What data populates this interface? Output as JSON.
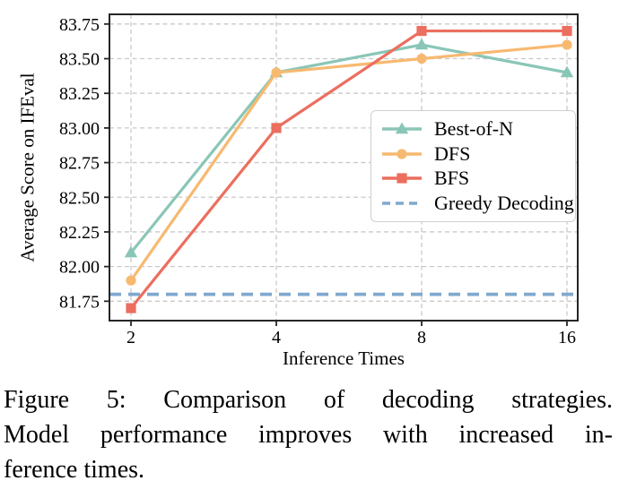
{
  "chart_data": {
    "type": "line",
    "title": "",
    "xlabel": "Inference Times",
    "ylabel": "Average Score on IFEval",
    "categories": [
      "2",
      "4",
      "8",
      "16"
    ],
    "yticks": [
      81.75,
      82.0,
      82.25,
      82.5,
      82.75,
      83.0,
      83.25,
      83.5,
      83.75
    ],
    "ylim": [
      81.61,
      83.82
    ],
    "grid": "dashed, both axes",
    "legend_position": "center right, framed box",
    "series": [
      {
        "name": "Best-of-N",
        "marker": "triangle",
        "color": "#8AC6B7",
        "values": [
          82.1,
          83.4,
          83.6,
          83.4
        ]
      },
      {
        "name": "DFS",
        "marker": "circle",
        "color": "#F7B970",
        "values": [
          81.9,
          83.4,
          83.5,
          83.6
        ]
      },
      {
        "name": "BFS",
        "marker": "square",
        "color": "#EC6E5E",
        "values": [
          81.7,
          83.0,
          83.7,
          83.7
        ]
      }
    ],
    "reference_line": {
      "name": "Greedy Decoding",
      "style": "dashed",
      "color": "#7FA8CE",
      "value": 81.8
    }
  },
  "colors": {
    "grid": "#c9c9c9",
    "spine": "#262626",
    "legend_border": "#cfcfcf"
  },
  "caption": {
    "lines": [
      "Figure 5:  Comparison of decoding strategies.",
      "Model performance improves with increased in-",
      "ference times."
    ]
  }
}
